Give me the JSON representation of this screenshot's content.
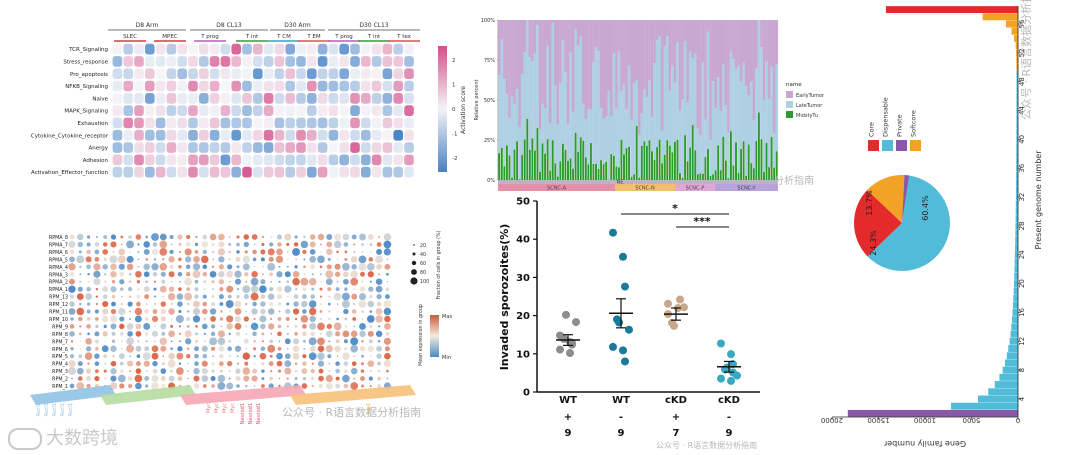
{
  "heatmap": {
    "groups": [
      "D8 Arm",
      "D8 CL13",
      "D30 Arm",
      "D30 CL13"
    ],
    "subgroups": [
      "SLEC",
      "MPEC",
      "T prog",
      "T int",
      "T CM",
      "T EM",
      "T prog",
      "T int",
      "T tex"
    ],
    "rows": [
      "TCR_Signaling",
      "Stress_response",
      "Pro_apoptosis",
      "NFKB_Signaling",
      "Naive",
      "MAPK_Signaling",
      "Exhaustion",
      "Cytokine_Cytokine_receptor",
      "Anergy",
      "Adhesion",
      "Activation_Effector_function"
    ],
    "colorbar_label": "Activation score",
    "colorbar_ticks": [
      "2",
      "1",
      "0",
      "-1",
      "-2"
    ]
  },
  "dotplot": {
    "rows": [
      "RPMA_8",
      "RPMA_7",
      "RPMA_6",
      "RPMA_5",
      "RPMA_4",
      "RPMA_3",
      "RPMA_2",
      "RPMA_1",
      "RPM_13",
      "RPM_12",
      "RPM_11",
      "RPM_10",
      "RPM_9",
      "RPM_8",
      "RPM_7",
      "RPM_6",
      "RPM_5",
      "RPM_4",
      "RPM_3",
      "RPM_2",
      "RPM_1"
    ],
    "genes_visible": [
      "Ascl1",
      "Ascl1",
      "Ascl1",
      "Ascl1",
      "Ascl1",
      "Myc",
      "Myc",
      "Myc",
      "Myc",
      "Neurod1",
      "Neurod1",
      "Neurod1",
      "Yap1"
    ],
    "size_legend_title": "Fraction of cells in group (%)",
    "size_legend_values": [
      "20",
      "40",
      "60",
      "80",
      "100"
    ],
    "color_legend_title": "Mean expression in group",
    "color_legend_max": "Max",
    "color_legend_min": "Min"
  },
  "stacked_bar": {
    "yticks": [
      "100%",
      "75%",
      "50%",
      "25%",
      "0%"
    ],
    "ylabel": "Relative percent",
    "top_label": "NE",
    "subtype_labels": [
      "SCNC-A",
      "SCNC-N",
      "SCNC-P",
      "SCNC-Y"
    ],
    "legend_title": "name",
    "legend_items": [
      {
        "label": "EarlyTumor",
        "color": "#c8a8d0"
      },
      {
        "label": "LateTumor",
        "color": "#aed0e2"
      },
      {
        "label": "MidstyTu",
        "color": "#2e9a2e"
      }
    ]
  },
  "chart_data": [
    {
      "type": "scatter",
      "ylabel": "Invaded sporozoites(%)",
      "ylim": [
        0,
        50
      ],
      "yticks": [
        "0",
        "10",
        "20",
        "30",
        "40",
        "50"
      ],
      "categories": [
        "WT",
        "WT",
        "cKD",
        "cKD"
      ],
      "row2": [
        "+",
        "-",
        "+",
        "-"
      ],
      "counts": [
        "9",
        "9",
        "7",
        "9"
      ],
      "colors": [
        "#8c8c8c",
        "#1a7a9a",
        "#c8a88a",
        "#3aa8c0"
      ],
      "means": [
        13.6,
        20.6,
        20.4,
        6.6
      ],
      "sems": [
        1.4,
        3.8,
        1.6,
        1.4
      ],
      "points": [
        [
          14.8,
          13.1,
          12.4,
          13.9,
          20.2,
          18.3,
          11.1,
          10.2,
          12.8
        ],
        [
          41.7,
          35.4,
          27.6,
          19.0,
          18.2,
          16.3,
          11.8,
          10.9,
          8.0
        ],
        [
          20.4,
          22.0,
          24.2,
          18.1,
          17.3,
          22.2,
          23.1
        ],
        [
          12.7,
          9.9,
          7.3,
          5.9,
          6.4,
          4.3,
          3.5,
          2.9,
          5.1
        ]
      ],
      "sig_labels": [
        "*",
        "***"
      ]
    },
    {
      "type": "bar",
      "xlabel": "Gene family number",
      "ylabel": "Present genome number",
      "xticks": [
        "20000",
        "15000",
        "10000",
        "5000",
        "0"
      ],
      "yticks": [
        "4",
        "8",
        "12",
        "16",
        "20",
        "24",
        "28",
        "32",
        "36",
        "40",
        "44",
        "48",
        "52",
        "56"
      ],
      "y": [
        2,
        3,
        4,
        5,
        6,
        7,
        8,
        9,
        10,
        11,
        12,
        13,
        14,
        15,
        16,
        17,
        18,
        19,
        20,
        21,
        22,
        23,
        24,
        25,
        26,
        27,
        28,
        29,
        30,
        31,
        32,
        33,
        34,
        35,
        36,
        37,
        38,
        39,
        40,
        41,
        42,
        43,
        44,
        45,
        46,
        47,
        48,
        49,
        50,
        51,
        52,
        53,
        54,
        55,
        56,
        57,
        58
      ],
      "values": [
        18300,
        7200,
        4300,
        3200,
        2500,
        2000,
        1650,
        1400,
        1200,
        1050,
        900,
        800,
        720,
        650,
        590,
        540,
        500,
        460,
        430,
        400,
        380,
        360,
        340,
        320,
        300,
        285,
        270,
        255,
        245,
        235,
        225,
        215,
        205,
        200,
        195,
        190,
        185,
        180,
        178,
        175,
        172,
        170,
        168,
        166,
        165,
        164,
        163,
        165,
        170,
        180,
        200,
        250,
        420,
        700,
        1300,
        3800,
        14200
      ],
      "legend": [
        {
          "label": "Core",
          "color": "#e32b2b"
        },
        {
          "label": "Dispensable",
          "color": "#52bcd8"
        },
        {
          "label": "Private",
          "color": "#8a58a8"
        },
        {
          "label": "Softcore",
          "color": "#f2a224"
        }
      ],
      "pie_labels": [
        "60.4%",
        "24.3%",
        "13.7%"
      ]
    }
  ],
  "watermarks": {
    "wm1": "公众号 · R语言数据分析指南",
    "wm2": "公众号 · R语言数据分析指南",
    "wm3": "公众号 · R语言数据分析指南",
    "wm4": "分析指南",
    "wm5": "公众号 · R语言数据分析指南",
    "corner": "大数跨境"
  }
}
